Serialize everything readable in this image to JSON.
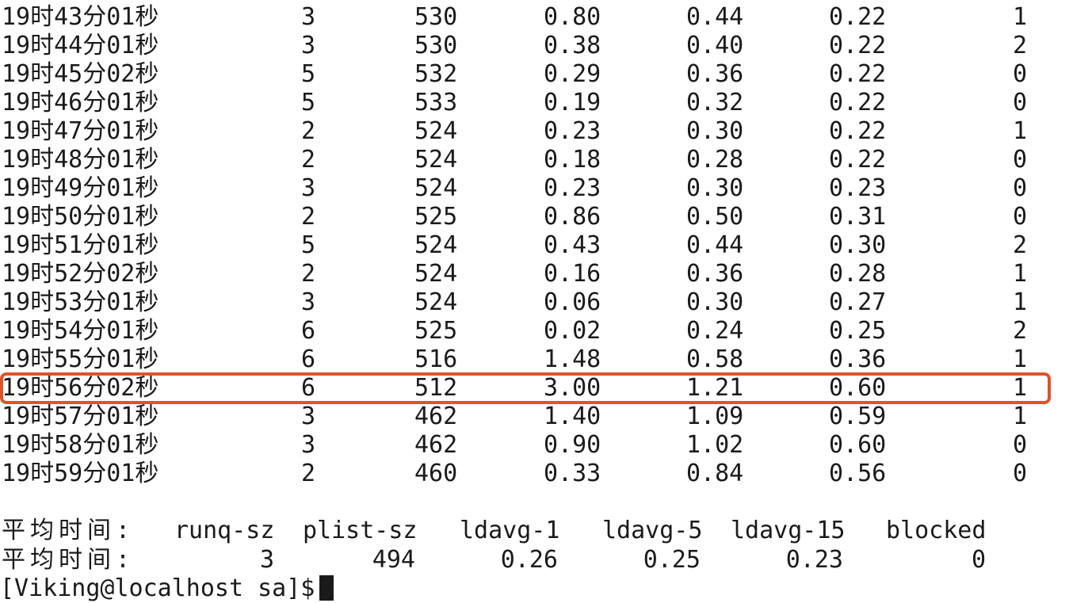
{
  "rows": [
    {
      "time": "19时43分01秒",
      "runq": "3",
      "plist": "530",
      "l1": "0.80",
      "l5": "0.44",
      "l15": "0.22",
      "blocked": "1"
    },
    {
      "time": "19时44分01秒",
      "runq": "3",
      "plist": "530",
      "l1": "0.38",
      "l5": "0.40",
      "l15": "0.22",
      "blocked": "2"
    },
    {
      "time": "19时45分02秒",
      "runq": "5",
      "plist": "532",
      "l1": "0.29",
      "l5": "0.36",
      "l15": "0.22",
      "blocked": "0"
    },
    {
      "time": "19时46分01秒",
      "runq": "5",
      "plist": "533",
      "l1": "0.19",
      "l5": "0.32",
      "l15": "0.22",
      "blocked": "0"
    },
    {
      "time": "19时47分01秒",
      "runq": "2",
      "plist": "524",
      "l1": "0.23",
      "l5": "0.30",
      "l15": "0.22",
      "blocked": "1"
    },
    {
      "time": "19时48分01秒",
      "runq": "2",
      "plist": "524",
      "l1": "0.18",
      "l5": "0.28",
      "l15": "0.22",
      "blocked": "0"
    },
    {
      "time": "19时49分01秒",
      "runq": "3",
      "plist": "524",
      "l1": "0.23",
      "l5": "0.30",
      "l15": "0.23",
      "blocked": "0"
    },
    {
      "time": "19时50分01秒",
      "runq": "2",
      "plist": "525",
      "l1": "0.86",
      "l5": "0.50",
      "l15": "0.31",
      "blocked": "0"
    },
    {
      "time": "19时51分01秒",
      "runq": "5",
      "plist": "524",
      "l1": "0.43",
      "l5": "0.44",
      "l15": "0.30",
      "blocked": "2"
    },
    {
      "time": "19时52分02秒",
      "runq": "2",
      "plist": "524",
      "l1": "0.16",
      "l5": "0.36",
      "l15": "0.28",
      "blocked": "1"
    },
    {
      "time": "19时53分01秒",
      "runq": "3",
      "plist": "524",
      "l1": "0.06",
      "l5": "0.30",
      "l15": "0.27",
      "blocked": "1"
    },
    {
      "time": "19时54分01秒",
      "runq": "6",
      "plist": "525",
      "l1": "0.02",
      "l5": "0.24",
      "l15": "0.25",
      "blocked": "2"
    },
    {
      "time": "19时55分01秒",
      "runq": "6",
      "plist": "516",
      "l1": "1.48",
      "l5": "0.58",
      "l15": "0.36",
      "blocked": "1"
    },
    {
      "time": "19时56分02秒",
      "runq": "6",
      "plist": "512",
      "l1": "3.00",
      "l5": "1.21",
      "l15": "0.60",
      "blocked": "1"
    },
    {
      "time": "19时57分01秒",
      "runq": "3",
      "plist": "462",
      "l1": "1.40",
      "l5": "1.09",
      "l15": "0.59",
      "blocked": "1"
    },
    {
      "time": "19时58分01秒",
      "runq": "3",
      "plist": "462",
      "l1": "0.90",
      "l5": "1.02",
      "l15": "0.60",
      "blocked": "0"
    },
    {
      "time": "19时59分01秒",
      "runq": "2",
      "plist": "460",
      "l1": "0.33",
      "l5": "0.84",
      "l15": "0.56",
      "blocked": "0"
    }
  ],
  "summary": {
    "header": {
      "label": "平均时间:",
      "runq": "runq-sz",
      "plist": "plist-sz",
      "l1": "ldavg-1",
      "l5": "ldavg-5",
      "l15": "ldavg-15",
      "blocked": "blocked"
    },
    "values": {
      "label": "平均时间:",
      "runq": "3",
      "plist": "494",
      "l1": "0.26",
      "l5": "0.25",
      "l15": "0.23",
      "blocked": "0"
    }
  },
  "prompt": {
    "text": "[Viking@localhost sa]$"
  },
  "highlight": {
    "color": "#e0522a"
  }
}
